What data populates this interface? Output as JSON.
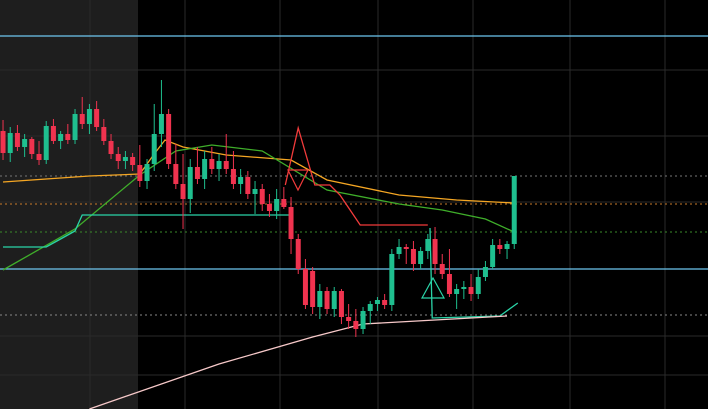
{
  "chart_data": {
    "type": "candlestick",
    "xlim": [
      -0.42,
      97.91
    ],
    "ylim": [
      0,
      409
    ],
    "up_color": "#1fbf8f",
    "down_color": "#f0334f",
    "open": [
      278,
      256,
      276,
      262,
      270,
      255,
      249,
      283,
      268,
      275,
      269,
      295,
      285,
      300,
      282,
      268,
      255,
      248,
      252,
      244,
      228,
      245,
      275,
      295,
      245,
      225,
      210,
      242,
      230,
      250,
      240,
      248,
      240,
      225,
      232,
      215,
      220,
      205,
      198,
      210,
      202,
      170,
      140,
      138,
      102,
      118,
      100,
      118,
      92,
      88,
      80,
      98,
      105,
      109,
      104,
      155,
      162,
      160,
      145,
      158,
      170,
      145,
      135,
      115,
      120,
      122,
      115,
      132,
      142,
      164,
      160,
      165
    ],
    "high": [
      289,
      282,
      284,
      275,
      272,
      268,
      288,
      290,
      278,
      285,
      300,
      312,
      305,
      308,
      290,
      275,
      262,
      258,
      256,
      264,
      250,
      305,
      329,
      300,
      265,
      255,
      250,
      262,
      258,
      262,
      255,
      275,
      258,
      240,
      238,
      228,
      225,
      215,
      220,
      222,
      212,
      175,
      150,
      142,
      125,
      122,
      122,
      120,
      105,
      100,
      102,
      108,
      112,
      115,
      160,
      170,
      165,
      168,
      162,
      175,
      182,
      155,
      160,
      125,
      128,
      135,
      140,
      148,
      170,
      170,
      168,
      233
    ],
    "low": [
      249,
      247,
      258,
      252,
      250,
      244,
      245,
      265,
      260,
      265,
      265,
      280,
      275,
      278,
      264,
      250,
      240,
      240,
      238,
      222,
      220,
      238,
      262,
      240,
      220,
      180,
      196,
      225,
      220,
      235,
      228,
      235,
      220,
      215,
      210,
      195,
      198,
      192,
      190,
      200,
      155,
      135,
      100,
      95,
      90,
      95,
      92,
      85,
      80,
      72,
      75,
      85,
      98,
      100,
      98,
      150,
      145,
      138,
      140,
      150,
      135,
      130,
      112,
      100,
      110,
      108,
      110,
      128,
      140,
      155,
      150,
      160
    ],
    "close": [
      256,
      276,
      262,
      270,
      255,
      249,
      283,
      268,
      275,
      269,
      295,
      285,
      300,
      282,
      268,
      255,
      248,
      252,
      244,
      228,
      245,
      275,
      295,
      245,
      225,
      210,
      242,
      230,
      250,
      240,
      248,
      240,
      225,
      232,
      215,
      220,
      205,
      198,
      210,
      202,
      170,
      140,
      104,
      102,
      118,
      100,
      118,
      92,
      88,
      80,
      98,
      105,
      109,
      104,
      155,
      162,
      160,
      145,
      158,
      170,
      145,
      135,
      115,
      120,
      122,
      115,
      132,
      142,
      164,
      160,
      165,
      233
    ],
    "lines": [
      {
        "color": "#f5a623",
        "x": [
          0,
          12,
          19,
          21,
          22.5,
          25,
          31,
          40,
          45,
          55,
          63,
          71
        ],
        "values": [
          227,
          233,
          235,
          255,
          269,
          262,
          254,
          249,
          229,
          214,
          209,
          206
        ]
      },
      {
        "color": "#3fae2a",
        "x": [
          0,
          10,
          19,
          24,
          29,
          36,
          45,
          55,
          61,
          67,
          71
        ],
        "values": [
          139,
          180,
          234,
          258,
          264,
          258,
          219,
          205,
          199,
          190,
          177
        ]
      },
      {
        "color": "#f23b3b",
        "x": [
          39.2,
          41,
          43.3,
          45.4,
          46.8,
          48.2,
          49.6,
          54,
          59
        ],
        "values": [
          224,
          281,
          224,
          224,
          214,
          199,
          184,
          184,
          184
        ]
      },
      {
        "color": "#2ad4a8",
        "x": [
          0,
          6,
          8,
          10,
          11,
          40,
          40.5,
          59.3,
          59.6,
          69,
          71.5
        ],
        "values": [
          162,
          162,
          170,
          178,
          194,
          194,
          null,
          181,
          91,
          93,
          106
        ]
      },
      {
        "color": "#f7c9c9",
        "x": [
          12,
          30,
          43,
          50,
          60,
          70
        ],
        "values": [
          0,
          45,
          72,
          85,
          89,
          93
        ]
      }
    ],
    "levels": [
      {
        "value": 373,
        "color": "#6ec6f0",
        "style": "solid"
      },
      {
        "value": 140,
        "color": "#6ec6f0",
        "style": "solid"
      },
      {
        "value": 233,
        "color": "#777777",
        "style": "dotted"
      },
      {
        "value": 205,
        "color": "#c87a2a",
        "style": "dotted"
      },
      {
        "value": 177,
        "color": "#3a8a2a",
        "style": "dotted"
      },
      {
        "value": 94,
        "color": "#888888",
        "style": "dotted"
      }
    ]
  }
}
